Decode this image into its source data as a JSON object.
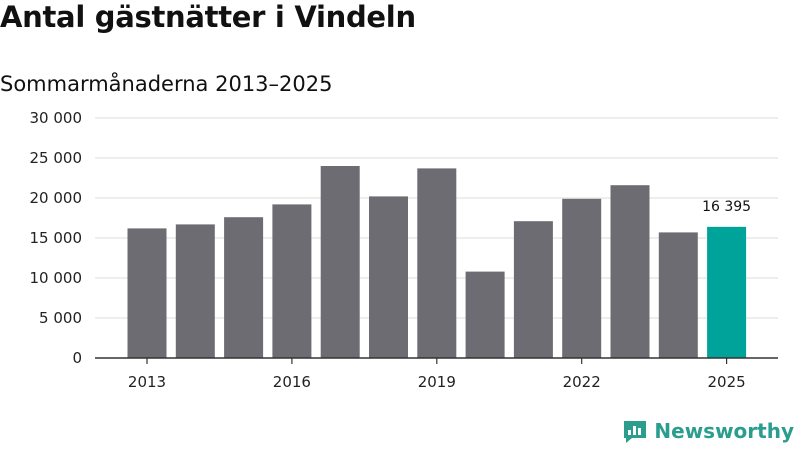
{
  "title": "Antal gästnätter i Vindeln",
  "subtitle": "Sommarmånaderna 2013–2025",
  "brand": {
    "name": "Newsworthy",
    "color": "#2a9d8f",
    "icon": "newsworthy-logo-icon"
  },
  "colors": {
    "bar": "#6d6c72",
    "highlight": "#00a39a",
    "grid": "#dddddd",
    "axis": "#333333"
  },
  "chart_data": {
    "type": "bar",
    "categories": [
      "2013",
      "2014",
      "2015",
      "2016",
      "2017",
      "2018",
      "2019",
      "2020",
      "2021",
      "2022",
      "2023",
      "2024",
      "2025"
    ],
    "values": [
      16200,
      16700,
      17600,
      19200,
      24000,
      20200,
      23700,
      10800,
      17100,
      19900,
      21600,
      15700,
      16395
    ],
    "highlight_index": 12,
    "x_tick_labels": [
      "2013",
      "2016",
      "2019",
      "2022",
      "2025"
    ],
    "y_ticks": [
      0,
      5000,
      10000,
      15000,
      20000,
      25000,
      30000
    ],
    "y_tick_labels": [
      "0",
      "5 000",
      "10 000",
      "15 000",
      "20 000",
      "25 000",
      "30 000"
    ],
    "ylim": [
      0,
      30000
    ],
    "data_labels": [
      {
        "index": 12,
        "text": "16 395"
      }
    ],
    "grid": true,
    "xlabel": "",
    "ylabel": ""
  }
}
